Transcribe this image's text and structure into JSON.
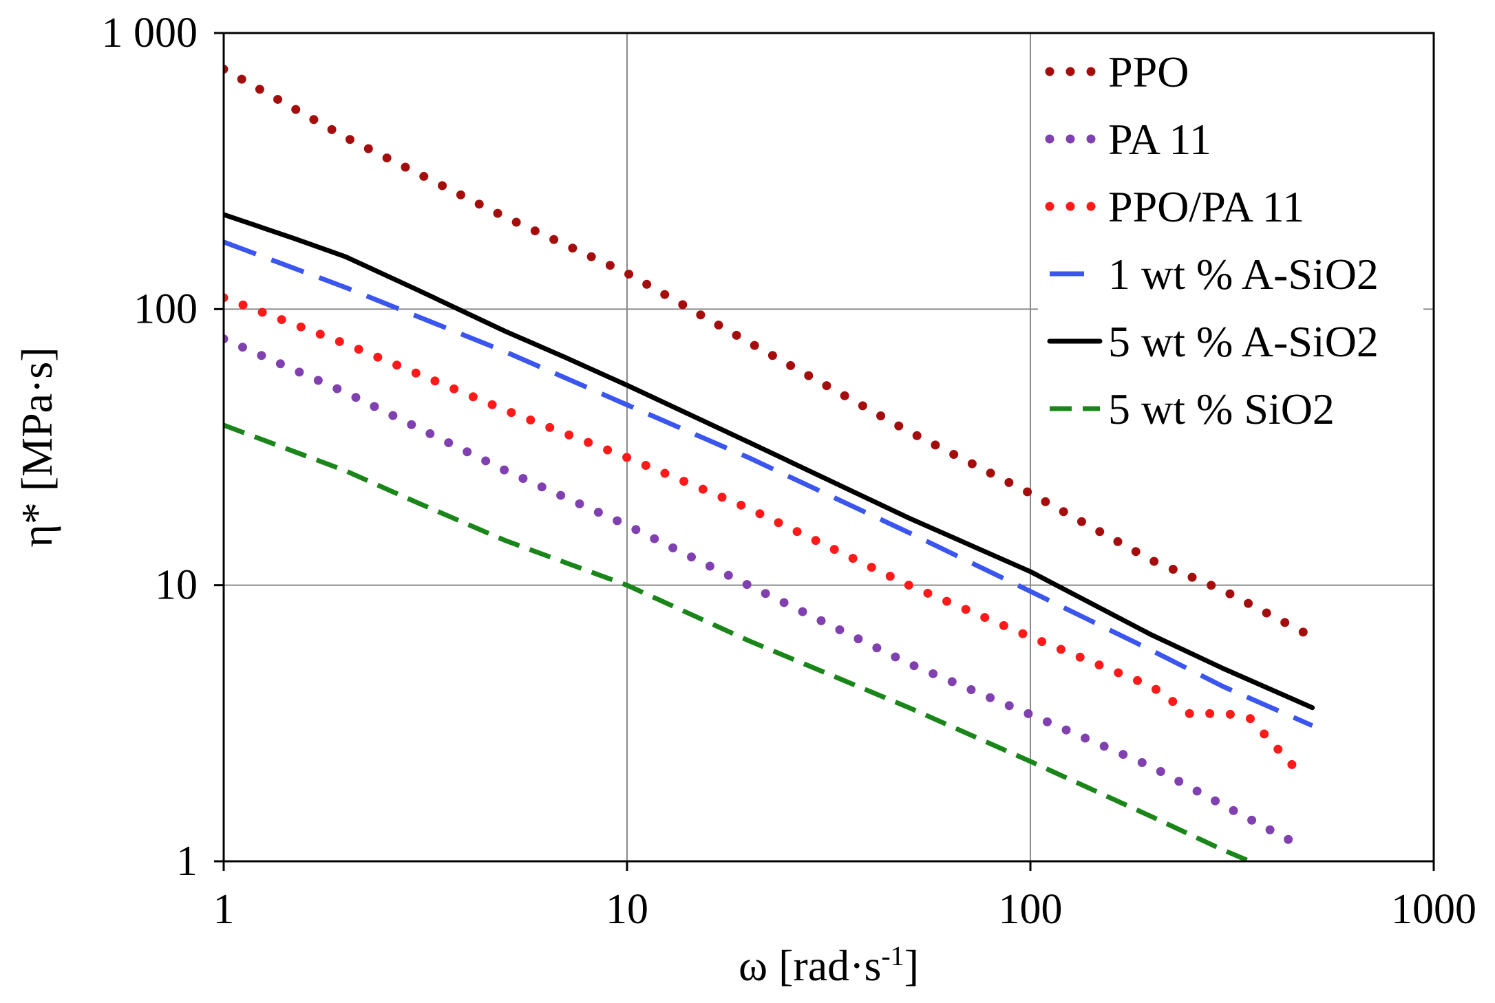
{
  "chart_data": {
    "type": "line",
    "xscale": "log",
    "yscale": "log",
    "xlim": [
      1,
      1000
    ],
    "ylim": [
      1,
      1000
    ],
    "xlabel": "ω [rad·s⁻¹]",
    "xlabel_main": "ω [rad",
    "xlabel_unit": "s",
    "xlabel_exp": "-1",
    "xlabel_close": "]",
    "ylabel": "η* [MPa·s]",
    "grid": true,
    "legend_position": "top-right",
    "x_ticks": [
      "1",
      "10",
      "100",
      "1000"
    ],
    "y_ticks": [
      "1",
      "10",
      "100",
      "1 000"
    ],
    "x_tick_values": [
      1,
      10,
      100,
      1000
    ],
    "y_tick_values": [
      1,
      10,
      100,
      1000
    ],
    "series": [
      {
        "name": "PPO",
        "color": "#a50d0d",
        "style": "dotted",
        "x": [
          1,
          2,
          5,
          10,
          20,
          50,
          100,
          200,
          300,
          500
        ],
        "y": [
          740,
          420,
          215,
          135,
          76,
          36,
          21.5,
          12.3,
          9.6,
          6.5
        ]
      },
      {
        "name": "PA 11",
        "color": "#8040b0",
        "style": "dotted",
        "x": [
          1,
          2,
          5,
          10,
          20,
          50,
          100,
          200,
          300,
          450
        ],
        "y": [
          78,
          50,
          26,
          16.5,
          10,
          5.2,
          3.4,
          2.2,
          1.6,
          1.17
        ]
      },
      {
        "name": "PPO/PA 11",
        "color": "#ff1a1a",
        "style": "dotted",
        "x": [
          1,
          2,
          5,
          10,
          20,
          50,
          100,
          200,
          250,
          300,
          350,
          450
        ],
        "y": [
          110,
          75,
          43,
          29,
          19,
          10,
          6.5,
          4.3,
          3.4,
          3.45,
          3.3,
          2.2
        ]
      },
      {
        "name": "1 wt % A-SiO2",
        "color": "#3a56ee",
        "style": "dash",
        "x": [
          1,
          2,
          5,
          10,
          20,
          50,
          100,
          200,
          300,
          500
        ],
        "y": [
          175,
          120,
          70,
          45,
          29,
          15.5,
          9.5,
          5.8,
          4.3,
          3.1
        ]
      },
      {
        "name": "5 wt % A-SiO2",
        "color": "#000000",
        "style": "solid",
        "x": [
          1,
          1.5,
          2,
          3,
          5,
          7,
          10,
          20,
          50,
          100,
          200,
          300,
          500
        ],
        "y": [
          220,
          180,
          155,
          118,
          83,
          67,
          53,
          33,
          17.5,
          11.2,
          6.6,
          5,
          3.6
        ]
      },
      {
        "name": "5 wt % SiO2",
        "color": "#1a861a",
        "style": "shortdash",
        "x": [
          1,
          2,
          3,
          5,
          10,
          20,
          50,
          100,
          200,
          300,
          350
        ],
        "y": [
          38,
          26,
          20,
          14.5,
          10,
          6.3,
          3.6,
          2.3,
          1.45,
          1.1,
          1.0
        ]
      }
    ]
  }
}
